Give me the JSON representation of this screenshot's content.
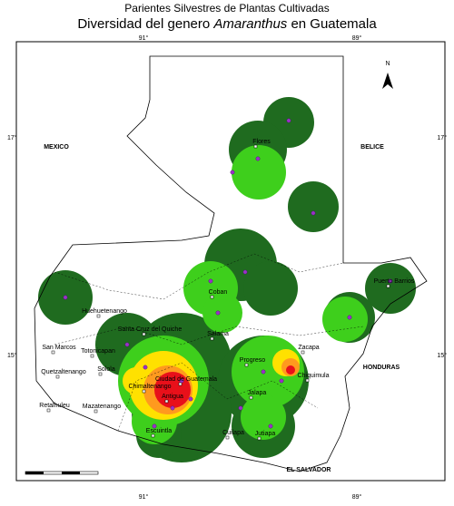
{
  "header": {
    "title": "Parientes Silvestres de Plantas Cultivadas",
    "subtitle_start": "Diversidad del genero ",
    "subtitle_genus": "Amaranthus",
    "subtitle_end": " en Guatemala"
  },
  "map": {
    "north": "N",
    "coords": {
      "top_left": "91°",
      "top_right": "89°",
      "left_upper": "17°",
      "right_upper": "17°",
      "left_lower": "15°",
      "right_lower": "15°",
      "bottom_left": "91°",
      "bottom_right": "89°"
    },
    "countries": [
      "MEXICO",
      "BELICE",
      "HONDURAS",
      "EL SALVADOR"
    ],
    "cities": [
      "Flores",
      "Coban",
      "Salama",
      "Huehuetenango",
      "San Marcos",
      "Quetzaltenango",
      "Retalhuleu",
      "Mazatenango",
      "Totonicapan",
      "Santa Cruz del Quiche",
      "Solola",
      "Chimaltenango",
      "Antigua",
      "Ciudad de Guatemala",
      "Escuintla",
      "Cuilapa",
      "Jutiapa",
      "Progreso",
      "Zacapa",
      "Chiquimula",
      "Jalapa",
      "Puerto Barrios"
    ]
  }
}
